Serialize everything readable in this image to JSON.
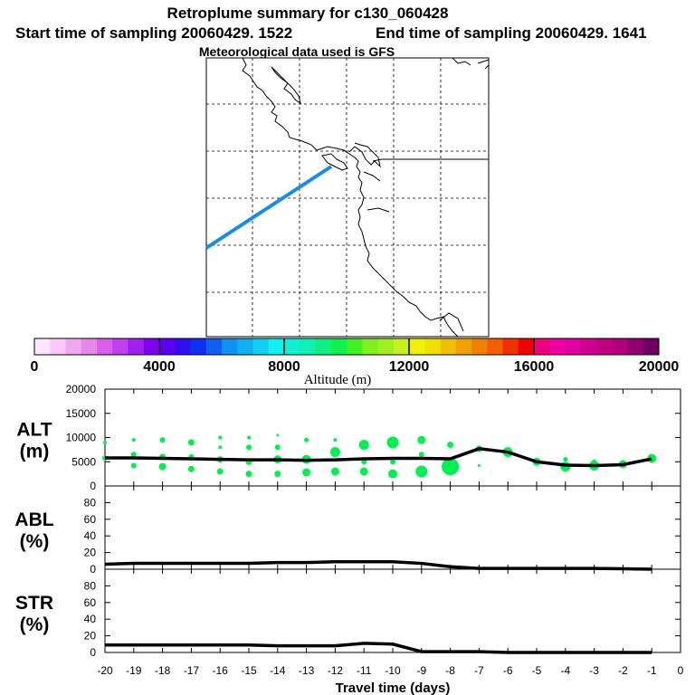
{
  "titles": {
    "main": "Retroplume summary for c130_060428",
    "start": "Start time of sampling 20060429.  1522",
    "end": "End time of sampling 20060429.  1641",
    "met": "Meteorological data used is GFS"
  },
  "colorbar": {
    "title": "Altitude (m)",
    "min": 0,
    "max": 20000,
    "ticks": [
      "0",
      "4000",
      "8000",
      "12000",
      "16000",
      "20000"
    ],
    "colors": [
      "#ffe6ff",
      "#f8c8f8",
      "#f0a8f0",
      "#e888e8",
      "#d860e8",
      "#c040f0",
      "#a020f0",
      "#8000f0",
      "#5a00f0",
      "#3010f0",
      "#1030f0",
      "#1060f0",
      "#1090f0",
      "#10b0f0",
      "#10d0f0",
      "#10f0f0",
      "#10f0d0",
      "#10f0b0",
      "#10f080",
      "#10f050",
      "#40f020",
      "#80f020",
      "#a0f020",
      "#c8f020",
      "#f0f000",
      "#f0e000",
      "#f0c000",
      "#f0a000",
      "#f08000",
      "#f06000",
      "#f03000",
      "#f00000",
      "#f00080",
      "#f000a0",
      "#e000a0",
      "#d00090",
      "#c00080",
      "#b00080",
      "#900070",
      "#700060"
    ]
  },
  "map": {
    "trajectory_color": "#1a8ce8"
  },
  "chart_data": [
    {
      "type": "scatter",
      "panel": "ALT",
      "ylabel_top": "ALT",
      "ylabel_bottom": "(m)",
      "ylim": [
        0,
        20000
      ],
      "yticks": [
        "0",
        "5000",
        "10000",
        "15000",
        "20000"
      ],
      "xlim": [
        -20,
        0
      ],
      "line": {
        "x": [
          -20,
          -19,
          -18,
          -17,
          -16,
          -15,
          -14,
          -13,
          -12,
          -11,
          -10,
          -9,
          -8,
          -7,
          -6,
          -5,
          -4,
          -3,
          -2,
          -1
        ],
        "y": [
          5800,
          5800,
          5700,
          5600,
          5500,
          5400,
          5400,
          5300,
          5400,
          5600,
          5700,
          5700,
          5600,
          7700,
          7000,
          5000,
          4300,
          4200,
          4400,
          5600
        ]
      },
      "points": [
        {
          "x": -20,
          "y": 5800,
          "r": 3
        },
        {
          "x": -20,
          "y": 9000,
          "r": 2
        },
        {
          "x": -19,
          "y": 9500,
          "r": 2
        },
        {
          "x": -19,
          "y": 6500,
          "r": 3
        },
        {
          "x": -19,
          "y": 4200,
          "r": 3
        },
        {
          "x": -18,
          "y": 9500,
          "r": 3
        },
        {
          "x": -18,
          "y": 6000,
          "r": 3.5
        },
        {
          "x": -18,
          "y": 4000,
          "r": 4
        },
        {
          "x": -17,
          "y": 9000,
          "r": 3.5
        },
        {
          "x": -17,
          "y": 6000,
          "r": 3
        },
        {
          "x": -17,
          "y": 3500,
          "r": 3.5
        },
        {
          "x": -16,
          "y": 10000,
          "r": 2
        },
        {
          "x": -16,
          "y": 8000,
          "r": 2
        },
        {
          "x": -16,
          "y": 5500,
          "r": 3.5
        },
        {
          "x": -16,
          "y": 3000,
          "r": 3.5
        },
        {
          "x": -15,
          "y": 10000,
          "r": 2
        },
        {
          "x": -15,
          "y": 8000,
          "r": 3
        },
        {
          "x": -15,
          "y": 5000,
          "r": 3.5
        },
        {
          "x": -15,
          "y": 2500,
          "r": 3.5
        },
        {
          "x": -14,
          "y": 10500,
          "r": 1.5
        },
        {
          "x": -14,
          "y": 8000,
          "r": 3
        },
        {
          "x": -14,
          "y": 5500,
          "r": 4.5
        },
        {
          "x": -14,
          "y": 2500,
          "r": 3.5
        },
        {
          "x": -13,
          "y": 9500,
          "r": 2.5
        },
        {
          "x": -13,
          "y": 5500,
          "r": 5
        },
        {
          "x": -13,
          "y": 2800,
          "r": 4.5
        },
        {
          "x": -12,
          "y": 9500,
          "r": 2
        },
        {
          "x": -12,
          "y": 7000,
          "r": 5.5
        },
        {
          "x": -12,
          "y": 3000,
          "r": 4.5
        },
        {
          "x": -11,
          "y": 8500,
          "r": 5.5
        },
        {
          "x": -11,
          "y": 5000,
          "r": 3
        },
        {
          "x": -11,
          "y": 3000,
          "r": 4.5
        },
        {
          "x": -10,
          "y": 9000,
          "r": 6.5
        },
        {
          "x": -10,
          "y": 5000,
          "r": 3
        },
        {
          "x": -10,
          "y": 2500,
          "r": 5
        },
        {
          "x": -9,
          "y": 9500,
          "r": 4.5
        },
        {
          "x": -9,
          "y": 6500,
          "r": 3
        },
        {
          "x": -9,
          "y": 3000,
          "r": 6.5
        },
        {
          "x": -8,
          "y": 8500,
          "r": 3.5
        },
        {
          "x": -8,
          "y": 4000,
          "r": 9.5
        },
        {
          "x": -7,
          "y": 7700,
          "r": 3.5
        },
        {
          "x": -7,
          "y": 4200,
          "r": 1.5
        },
        {
          "x": -6,
          "y": 7000,
          "r": 5.5
        },
        {
          "x": -5,
          "y": 5000,
          "r": 4.5
        },
        {
          "x": -4,
          "y": 5500,
          "r": 2.5
        },
        {
          "x": -4,
          "y": 4000,
          "r": 5.5
        },
        {
          "x": -3,
          "y": 5000,
          "r": 2.5
        },
        {
          "x": -3,
          "y": 4200,
          "r": 5.5
        },
        {
          "x": -2,
          "y": 4500,
          "r": 4.5
        },
        {
          "x": -1,
          "y": 5700,
          "r": 5
        }
      ],
      "point_color": "#00f050"
    },
    {
      "type": "line",
      "panel": "ABL",
      "ylabel_top": "ABL",
      "ylabel_bottom": "(%)",
      "ylim": [
        0,
        100
      ],
      "yticks": [
        "0",
        "20",
        "40",
        "60",
        "80"
      ],
      "xlim": [
        -20,
        0
      ],
      "x": [
        -20,
        -19,
        -18,
        -17,
        -16,
        -15,
        -14,
        -13,
        -12,
        -11,
        -10,
        -9,
        -8,
        -7,
        -6,
        -5,
        -4,
        -3,
        -2,
        -1
      ],
      "y": [
        6,
        7,
        7,
        7,
        7,
        7,
        8,
        8,
        9,
        9,
        9,
        7,
        3,
        1,
        1,
        1,
        1,
        1,
        0.5,
        0
      ]
    },
    {
      "type": "line",
      "panel": "STR",
      "ylabel_top": "STR",
      "ylabel_bottom": "(%)",
      "ylim": [
        0,
        100
      ],
      "yticks": [
        "0",
        "20",
        "40",
        "60",
        "80"
      ],
      "xlim": [
        -20,
        0
      ],
      "xlabel": "Travel time (days)",
      "xticks": [
        "-20",
        "-19",
        "-18",
        "-17",
        "-16",
        "-15",
        "-14",
        "-13",
        "-12",
        "-11",
        "-10",
        "-9",
        "-8",
        "-7",
        "-6",
        "-5",
        "-4",
        "-3",
        "-2",
        "-1",
        "0"
      ],
      "x": [
        -20,
        -19,
        -18,
        -17,
        -16,
        -15,
        -14,
        -13,
        -12,
        -11,
        -10,
        -9,
        -8,
        -7,
        -6,
        -5,
        -4,
        -3,
        -2,
        -1
      ],
      "y": [
        9,
        9,
        9,
        9,
        9,
        9,
        8,
        8,
        8,
        11,
        10,
        1,
        1,
        1,
        0,
        0,
        0,
        0,
        0,
        0
      ]
    }
  ]
}
